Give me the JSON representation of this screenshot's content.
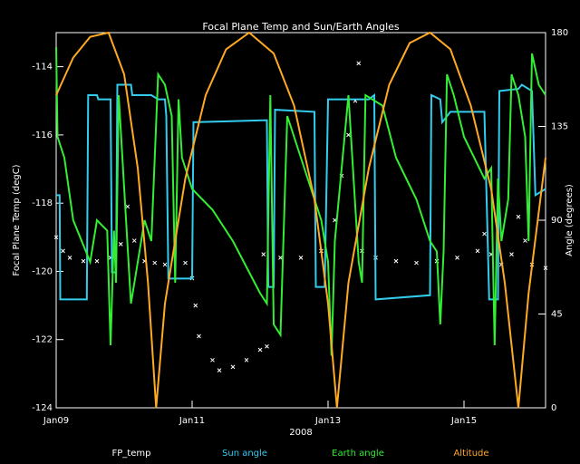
{
  "chart_data": {
    "type": "line",
    "title": "Focal Plane Temp and Sun/Earth Angles",
    "xlabel": "2008",
    "ylabel": "Focal Plane Temp (degC)",
    "y2label": "Angle (degrees)",
    "xlim": [
      0,
      7.2
    ],
    "xticks": [
      {
        "value": 0,
        "label": "Jan09"
      },
      {
        "value": 2,
        "label": "Jan11"
      },
      {
        "value": 4,
        "label": "Jan13"
      },
      {
        "value": 6,
        "label": "Jan15"
      }
    ],
    "ylim": [
      -124,
      -113
    ],
    "yticks": [
      -124,
      -122,
      -120,
      -118,
      -116,
      -114
    ],
    "y2lim": [
      0,
      180
    ],
    "y2ticks": [
      0,
      45,
      90,
      135,
      180
    ],
    "legend": "bottom",
    "background": "#000000",
    "series": [
      {
        "name": "FP_temp",
        "color": "#ffffff",
        "marker": "x",
        "x": [
          0,
          0.1,
          0.2,
          0.4,
          0.6,
          0.8,
          0.95,
          1.05,
          1.15,
          1.3,
          1.45,
          1.6,
          1.9,
          2.0,
          2.05,
          2.1,
          2.3,
          2.4,
          2.6,
          2.8,
          3.0,
          3.1,
          3.05,
          3.3,
          3.6,
          3.9,
          4.1,
          4.2,
          4.3,
          4.4,
          4.45,
          4.5,
          4.7,
          5.0,
          5.3,
          5.6,
          5.9,
          6.2,
          6.3,
          6.4,
          6.55,
          6.7,
          6.8,
          6.9,
          7.0,
          7.2
        ],
        "values": [
          -119.0,
          -119.4,
          -119.6,
          -119.7,
          -119.7,
          -119.6,
          -119.2,
          -118.1,
          -119.1,
          -119.7,
          -119.75,
          -119.8,
          -119.75,
          -120.2,
          -121,
          -121.9,
          -122.6,
          -122.9,
          -122.8,
          -122.6,
          -122.3,
          -122.2,
          -119.5,
          -119.6,
          -119.6,
          -119.4,
          -118.5,
          -117.2,
          -116.0,
          -115.0,
          -113.9,
          -119.4,
          -119.6,
          -119.7,
          -119.75,
          -119.7,
          -119.6,
          -119.4,
          -118.9,
          -119.5,
          -119.8,
          -119.5,
          -118.4,
          -119.1,
          -119.8,
          -119.9
        ]
      },
      {
        "name": "Sun angle",
        "color": "#33ccee",
        "axis": "y2",
        "x": [
          0,
          0.05,
          0.06,
          0.45,
          0.47,
          0.6,
          0.62,
          0.8,
          0.82,
          0.88,
          0.9,
          1.1,
          1.12,
          1.4,
          1.5,
          1.6,
          1.62,
          1.65,
          2.0,
          2.02,
          3.1,
          3.12,
          3.2,
          3.22,
          3.8,
          3.82,
          3.95,
          4.0,
          4.6,
          4.68,
          4.7,
          5.5,
          5.52,
          5.65,
          5.68,
          5.8,
          6.3,
          6.37,
          6.5,
          6.52,
          6.8,
          6.85,
          7.0,
          7.05,
          7.2
        ],
        "values": [
          102,
          102,
          52,
          52,
          150,
          150,
          148,
          148,
          65,
          65,
          155,
          155,
          150,
          150,
          148,
          148,
          140,
          62,
          62,
          137,
          138,
          58,
          58,
          143,
          142,
          58,
          58,
          148,
          148,
          150,
          52,
          54,
          150,
          148,
          137,
          142,
          142,
          52,
          52,
          152,
          153,
          155,
          152,
          102,
          105
        ]
      },
      {
        "name": "Earth angle",
        "color": "#33ee33",
        "axis": "y2",
        "x": [
          0,
          0.02,
          0.12,
          0.25,
          0.5,
          0.6,
          0.75,
          0.8,
          0.85,
          0.88,
          0.92,
          1.1,
          1.15,
          1.3,
          1.4,
          1.5,
          1.6,
          1.7,
          1.75,
          1.8,
          1.85,
          2.0,
          2.3,
          2.6,
          3.0,
          3.1,
          3.15,
          3.2,
          3.3,
          3.4,
          3.5,
          3.7,
          3.9,
          4.0,
          4.05,
          4.1,
          4.3,
          4.45,
          4.5,
          4.55,
          4.8,
          5.0,
          5.3,
          5.5,
          5.6,
          5.65,
          5.7,
          5.75,
          5.85,
          6.0,
          6.3,
          6.4,
          6.45,
          6.5,
          6.55,
          6.65,
          6.7,
          6.8,
          6.9,
          6.95,
          7.0,
          7.1,
          7.2
        ],
        "values": [
          173,
          130,
          120,
          90,
          70,
          90,
          85,
          30,
          85,
          60,
          150,
          50,
          60,
          90,
          80,
          160,
          155,
          140,
          60,
          148,
          120,
          105,
          95,
          80,
          55,
          50,
          150,
          40,
          35,
          140,
          130,
          110,
          90,
          70,
          25,
          80,
          150,
          70,
          60,
          150,
          145,
          120,
          100,
          80,
          75,
          40,
          75,
          160,
          150,
          130,
          110,
          115,
          30,
          110,
          80,
          100,
          160,
          150,
          130,
          80,
          170,
          155,
          150
        ]
      },
      {
        "name": "Altitude",
        "color": "#ffaa22",
        "axis": "y2",
        "x": [
          0,
          0.25,
          0.5,
          0.77,
          1.0,
          1.2,
          1.35,
          1.47,
          1.6,
          1.9,
          2.2,
          2.5,
          2.84,
          3.2,
          3.5,
          3.8,
          4.0,
          4.13,
          4.3,
          4.6,
          4.9,
          5.2,
          5.5,
          5.8,
          6.1,
          6.4,
          6.6,
          6.8,
          6.95,
          7.2
        ],
        "values": [
          150,
          168,
          178,
          180,
          160,
          115,
          60,
          0,
          50,
          110,
          150,
          172,
          180,
          170,
          145,
          100,
          50,
          0,
          60,
          115,
          155,
          175,
          180,
          172,
          145,
          105,
          60,
          0,
          55,
          120
        ]
      }
    ]
  }
}
